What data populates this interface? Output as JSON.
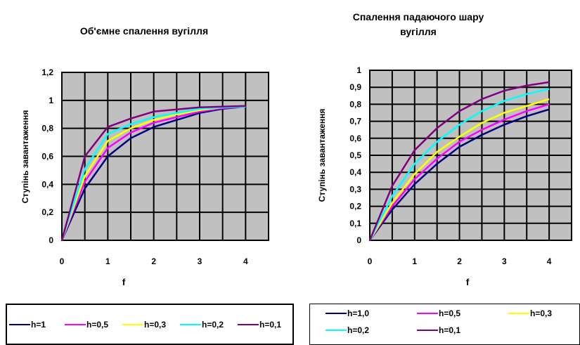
{
  "chart_data": [
    {
      "type": "line",
      "title": "Об'ємне спалення вугілля",
      "xlabel": "f",
      "ylabel": "Ступінь завантаження",
      "xlim": [
        0,
        4.5
      ],
      "ylim": [
        0,
        1.2
      ],
      "xticks": [
        "0",
        "1",
        "2",
        "3",
        "4"
      ],
      "yticks": [
        "0",
        "0,2",
        "0,4",
        "0,6",
        "0,8",
        "1",
        "1,2"
      ],
      "grid": true,
      "legend": "bottom",
      "x": [
        0,
        0.5,
        1,
        1.5,
        2,
        2.5,
        3,
        3.5,
        4
      ],
      "series": [
        {
          "name": "h=1",
          "color": "#000080",
          "values": [
            0,
            0.37,
            0.6,
            0.73,
            0.81,
            0.86,
            0.91,
            0.94,
            0.955
          ]
        },
        {
          "name": "h=0,5",
          "color": "#FF00FF",
          "values": [
            0,
            0.42,
            0.66,
            0.77,
            0.84,
            0.88,
            0.92,
            0.945,
            0.955
          ]
        },
        {
          "name": "h=0,3",
          "color": "#FFFF00",
          "values": [
            0,
            0.46,
            0.71,
            0.8,
            0.86,
            0.9,
            0.93,
            0.95,
            0.955
          ]
        },
        {
          "name": "h=0,2",
          "color": "#00FFFF",
          "values": [
            0,
            0.51,
            0.76,
            0.83,
            0.88,
            0.91,
            0.94,
            0.95,
            0.955
          ]
        },
        {
          "name": "h=0,1",
          "color": "#800080",
          "values": [
            0,
            0.6,
            0.81,
            0.87,
            0.92,
            0.935,
            0.95,
            0.955,
            0.96
          ]
        }
      ]
    },
    {
      "type": "line",
      "title": "Спалення падаючого шару вугілля",
      "xlabel": "f",
      "ylabel": "Ступінь завантаження",
      "xlim": [
        0,
        4.5
      ],
      "ylim": [
        0,
        1
      ],
      "xticks": [
        "0",
        "1",
        "2",
        "3",
        "4"
      ],
      "yticks": [
        "0",
        "0,1",
        "0,2",
        "0,3",
        "0,4",
        "0,5",
        "0,6",
        "0,7",
        "0,8",
        "0,9",
        "1"
      ],
      "grid": true,
      "legend": "bottom",
      "x": [
        0,
        0.5,
        1,
        1.5,
        2,
        2.5,
        3,
        3.5,
        4
      ],
      "series": [
        {
          "name": "h=1,0",
          "color": "#000080",
          "values": [
            0,
            0.18,
            0.33,
            0.45,
            0.55,
            0.62,
            0.68,
            0.73,
            0.77
          ]
        },
        {
          "name": "h=0,5",
          "color": "#FF00FF",
          "values": [
            0,
            0.2,
            0.36,
            0.48,
            0.58,
            0.65,
            0.71,
            0.76,
            0.8
          ]
        },
        {
          "name": "h=0,3",
          "color": "#FFFF00",
          "values": [
            0,
            0.22,
            0.39,
            0.52,
            0.61,
            0.69,
            0.75,
            0.79,
            0.83
          ]
        },
        {
          "name": "h=0,2",
          "color": "#00FFFF",
          "values": [
            0,
            0.26,
            0.45,
            0.58,
            0.68,
            0.76,
            0.82,
            0.86,
            0.89
          ]
        },
        {
          "name": "h=0,1",
          "color": "#800080",
          "values": [
            0,
            0.32,
            0.53,
            0.66,
            0.76,
            0.83,
            0.88,
            0.91,
            0.93
          ]
        }
      ]
    }
  ]
}
